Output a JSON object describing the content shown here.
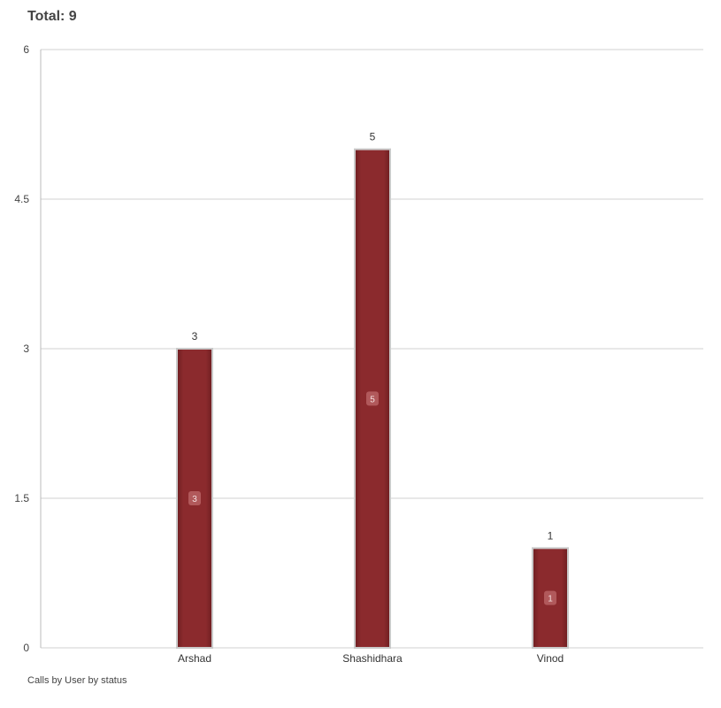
{
  "header": {
    "total_label": "Total: 9"
  },
  "footer": {
    "caption": "Calls by User by status"
  },
  "colors": {
    "bar_fill": "#8b2a2d",
    "bar_edge": "#6e1e21",
    "bar_outline": "#c9c9c9",
    "grid": "#d0d0d0",
    "inner_badge": "#b55e60"
  },
  "chart_data": {
    "type": "bar",
    "categories": [
      "Arshad",
      "Shashidhara",
      "Vinod"
    ],
    "values": [
      3,
      5,
      1
    ],
    "data_labels": [
      "3",
      "5",
      "1"
    ],
    "inner_labels": [
      "3",
      "5",
      "1"
    ],
    "ylim": [
      0,
      6
    ],
    "y_ticks": [
      0,
      1.5,
      3,
      4.5,
      6
    ],
    "y_tick_labels": [
      "0",
      "1.5",
      "3",
      "4.5",
      "6"
    ],
    "grid": true,
    "legend": false
  }
}
